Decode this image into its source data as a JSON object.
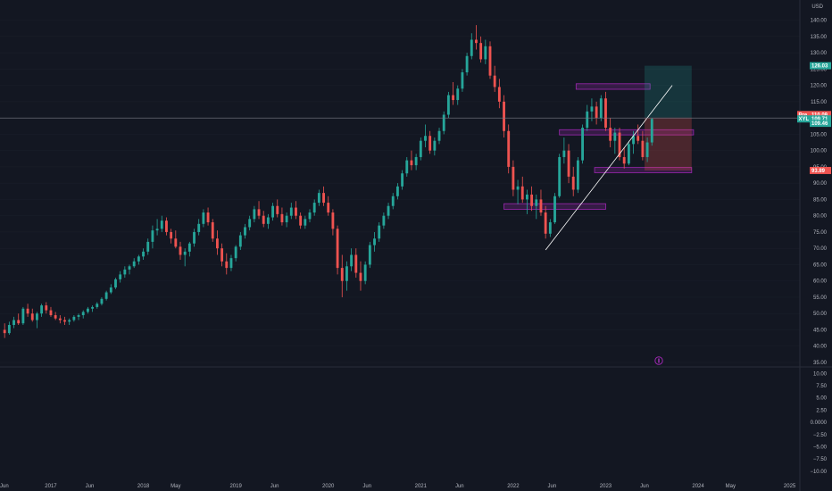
{
  "colors": {
    "background": "#131722",
    "up": "#26a69a",
    "down": "#ef5350",
    "zone_fill": "rgba(156,39,176,0.25)",
    "zone_stroke": "#9c27b0",
    "trendline": "#ffffff",
    "target_fill": "rgba(38,166,154,0.22)",
    "stop_fill": "rgba(239,83,80,0.25)",
    "axis_text": "#b2b5be"
  },
  "chart_data": [
    {
      "type": "candlestick",
      "title": "",
      "currency_label": "USD",
      "x_ticks": [
        "Jun",
        "2017",
        "Jun",
        "2018",
        "May",
        "2019",
        "Jun",
        "2020",
        "Jun",
        "2021",
        "Jun",
        "2022",
        "Jun",
        "2023",
        "Jun",
        "2024",
        "May",
        "2025"
      ],
      "y_ticks": [
        "140.00",
        "135.00",
        "130.00",
        "125.00",
        "120.00",
        "115.00",
        "105.00",
        "100.00",
        "95.00",
        "90.00",
        "85.00",
        "80.00",
        "75.00",
        "70.00",
        "65.00",
        "60.00",
        "55.00",
        "50.00",
        "45.00",
        "40.00",
        "35.00"
      ],
      "ylim": [
        35,
        144
      ],
      "price_badges": [
        {
          "label": "126.03",
          "value": 126.03,
          "color": "#26a69a"
        },
        {
          "label": "110.09",
          "value": 110.09,
          "color": "#ef5350",
          "prefix": "Pre"
        },
        {
          "label": "109.71",
          "value": 109.71,
          "color": "#26a69a",
          "prefix": "XYL"
        },
        {
          "label": "109.46",
          "value": 109.46,
          "color": "#26a69a"
        },
        {
          "label": "93.89",
          "value": 93.89,
          "color": "#ef5350"
        }
      ],
      "horizontal_line": 110,
      "support_resistance_zones": [
        {
          "start": 2022.68,
          "end": 2023.48,
          "low": 118.8,
          "high": 120.5
        },
        {
          "start": 2022.5,
          "end": 2023.95,
          "low": 104.8,
          "high": 106.4
        },
        {
          "start": 2022.88,
          "end": 2023.93,
          "low": 93.2,
          "high": 94.8
        },
        {
          "start": 2021.9,
          "end": 2023.0,
          "low": 82.0,
          "high": 83.7
        }
      ],
      "trendline": {
        "x": [
          2022.35,
          2023.72
        ],
        "y": [
          69.5,
          120.0
        ]
      },
      "long_position": {
        "start": 2023.42,
        "end": 2023.93,
        "entry": 110.09,
        "target": 126.03,
        "stop": 93.89
      },
      "candles": [
        [
          2016.5,
          45,
          47,
          42.5,
          44
        ],
        [
          2016.55,
          44,
          47.5,
          43.5,
          46.5
        ],
        [
          2016.6,
          46.5,
          49,
          45.5,
          48
        ],
        [
          2016.65,
          48,
          50,
          46.5,
          47
        ],
        [
          2016.7,
          47,
          52,
          46.5,
          51.5
        ],
        [
          2016.75,
          51.5,
          53,
          49,
          50
        ],
        [
          2016.8,
          50,
          51.5,
          47.5,
          48
        ],
        [
          2016.85,
          48,
          50.5,
          45.5,
          50
        ],
        [
          2016.9,
          50,
          53,
          49,
          52.5
        ],
        [
          2016.95,
          52.5,
          53.5,
          50,
          51
        ],
        [
          2017.0,
          51,
          52,
          49,
          49.5
        ],
        [
          2017.05,
          49.5,
          50.5,
          48,
          48.5
        ],
        [
          2017.1,
          48.5,
          49.5,
          47,
          48
        ],
        [
          2017.15,
          48,
          49,
          46.5,
          47.5
        ],
        [
          2017.2,
          47.5,
          48.5,
          46.5,
          48
        ],
        [
          2017.25,
          48,
          49.5,
          47.5,
          49
        ],
        [
          2017.3,
          49,
          50,
          48,
          49.5
        ],
        [
          2017.35,
          49.5,
          51,
          48.5,
          50.5
        ],
        [
          2017.4,
          50.5,
          52,
          50,
          51.5
        ],
        [
          2017.45,
          51.5,
          52.5,
          50.5,
          52
        ],
        [
          2017.5,
          52,
          53.5,
          51.5,
          53
        ],
        [
          2017.55,
          53,
          55,
          52.5,
          54.5
        ],
        [
          2017.6,
          54.5,
          57,
          54,
          56.5
        ],
        [
          2017.65,
          56.5,
          59,
          56,
          58
        ],
        [
          2017.7,
          58,
          61,
          57.5,
          60.5
        ],
        [
          2017.75,
          60.5,
          63,
          59.5,
          62
        ],
        [
          2017.8,
          62,
          64.5,
          61,
          63.5
        ],
        [
          2017.85,
          63.5,
          65,
          62,
          64.5
        ],
        [
          2017.9,
          64.5,
          67,
          64,
          66
        ],
        [
          2017.95,
          66,
          68,
          65,
          67.5
        ],
        [
          2018.0,
          67.5,
          70,
          66.5,
          69
        ],
        [
          2018.05,
          69,
          73,
          68,
          72
        ],
        [
          2018.1,
          72,
          77,
          70,
          75.5
        ],
        [
          2018.15,
          75.5,
          79,
          74,
          76
        ],
        [
          2018.2,
          76,
          80,
          75,
          78.5
        ],
        [
          2018.25,
          78.5,
          79.5,
          74,
          75
        ],
        [
          2018.3,
          75,
          76,
          71.5,
          73
        ],
        [
          2018.35,
          73,
          75.5,
          70,
          70.5
        ],
        [
          2018.4,
          70.5,
          72,
          66.5,
          68
        ],
        [
          2018.45,
          68,
          70,
          64.5,
          69
        ],
        [
          2018.5,
          69,
          72,
          67.5,
          71.5
        ],
        [
          2018.55,
          71.5,
          76,
          70.5,
          75
        ],
        [
          2018.6,
          75,
          79,
          74,
          77.5
        ],
        [
          2018.65,
          77.5,
          82,
          76.5,
          81
        ],
        [
          2018.7,
          81,
          82.5,
          77,
          78
        ],
        [
          2018.75,
          78,
          79,
          72,
          73
        ],
        [
          2018.8,
          73,
          75.5,
          68,
          70
        ],
        [
          2018.85,
          70,
          71.5,
          64.5,
          66
        ],
        [
          2018.9,
          66,
          68.5,
          62,
          64
        ],
        [
          2018.95,
          64,
          68,
          63,
          67
        ],
        [
          2019.0,
          67,
          71,
          66,
          70.5
        ],
        [
          2019.05,
          70.5,
          75,
          69.5,
          74
        ],
        [
          2019.1,
          74,
          77.5,
          73,
          76.5
        ],
        [
          2019.15,
          76.5,
          80,
          75.5,
          79
        ],
        [
          2019.2,
          79,
          83,
          78,
          82
        ],
        [
          2019.25,
          82,
          84.5,
          79,
          80
        ],
        [
          2019.3,
          80,
          81.5,
          76.5,
          77.5
        ],
        [
          2019.35,
          77.5,
          80.5,
          76,
          79.5
        ],
        [
          2019.4,
          79.5,
          84,
          78.5,
          83
        ],
        [
          2019.45,
          83,
          85,
          79.5,
          80.5
        ],
        [
          2019.5,
          80.5,
          82.5,
          77,
          78
        ],
        [
          2019.55,
          78,
          81,
          76.5,
          80
        ],
        [
          2019.6,
          80,
          84,
          79,
          82.5
        ],
        [
          2019.65,
          82.5,
          84.5,
          79,
          80
        ],
        [
          2019.7,
          80,
          81,
          76,
          77
        ],
        [
          2019.75,
          77,
          80,
          76,
          79
        ],
        [
          2019.8,
          79,
          82,
          78,
          81
        ],
        [
          2019.85,
          81,
          85,
          80,
          84
        ],
        [
          2019.9,
          84,
          88,
          83,
          87
        ],
        [
          2019.95,
          87,
          89,
          83,
          84
        ],
        [
          2020.0,
          84,
          86,
          80,
          81
        ],
        [
          2020.05,
          81,
          82,
          74,
          76
        ],
        [
          2020.1,
          76,
          77,
          62,
          64
        ],
        [
          2020.15,
          64,
          68,
          55,
          60
        ],
        [
          2020.2,
          60,
          66,
          57,
          64.5
        ],
        [
          2020.25,
          64.5,
          70,
          63,
          68
        ],
        [
          2020.3,
          68,
          70,
          61,
          62.5
        ],
        [
          2020.35,
          62.5,
          66,
          57,
          60
        ],
        [
          2020.4,
          60,
          66,
          59,
          65
        ],
        [
          2020.45,
          65,
          72,
          64,
          71
        ],
        [
          2020.5,
          71,
          75,
          69,
          73
        ],
        [
          2020.55,
          73,
          78,
          72,
          77
        ],
        [
          2020.6,
          77,
          81,
          76,
          80
        ],
        [
          2020.65,
          80,
          84,
          79,
          83
        ],
        [
          2020.7,
          83,
          87,
          82,
          86
        ],
        [
          2020.75,
          86,
          90,
          85,
          89
        ],
        [
          2020.8,
          89,
          94,
          88,
          93
        ],
        [
          2020.85,
          93,
          98,
          92,
          97
        ],
        [
          2020.9,
          97,
          100,
          94,
          95.5
        ],
        [
          2020.95,
          95.5,
          99,
          94,
          98
        ],
        [
          2021.0,
          98,
          104,
          97,
          103
        ],
        [
          2021.05,
          103,
          108,
          101,
          104.5
        ],
        [
          2021.1,
          104.5,
          106,
          99,
          100
        ],
        [
          2021.15,
          100,
          104,
          98.5,
          103
        ],
        [
          2021.2,
          103,
          107,
          102,
          106
        ],
        [
          2021.25,
          106,
          112,
          105,
          111
        ],
        [
          2021.3,
          111,
          118,
          110,
          117
        ],
        [
          2021.35,
          117,
          121,
          114,
          115.5
        ],
        [
          2021.4,
          115.5,
          120,
          114,
          119
        ],
        [
          2021.45,
          119,
          125,
          118,
          124
        ],
        [
          2021.5,
          124,
          130,
          123,
          129
        ],
        [
          2021.55,
          129,
          136,
          128,
          134
        ],
        [
          2021.6,
          134,
          138.5,
          131,
          133
        ],
        [
          2021.65,
          133,
          135,
          127,
          128
        ],
        [
          2021.7,
          128,
          134,
          126.5,
          132
        ],
        [
          2021.75,
          132,
          133.5,
          122,
          123
        ],
        [
          2021.8,
          123,
          126,
          118,
          119.5
        ],
        [
          2021.85,
          119.5,
          122,
          113,
          115
        ],
        [
          2021.9,
          115,
          117,
          104,
          106
        ],
        [
          2021.95,
          106,
          108,
          93,
          95
        ],
        [
          2022.0,
          95,
          97,
          86,
          88
        ],
        [
          2022.05,
          88,
          91,
          83.5,
          89
        ],
        [
          2022.1,
          89,
          92,
          84,
          85
        ],
        [
          2022.15,
          85,
          88,
          80.5,
          86.5
        ],
        [
          2022.2,
          86.5,
          89,
          81.5,
          83
        ],
        [
          2022.25,
          83,
          86.5,
          79,
          85
        ],
        [
          2022.3,
          85,
          88,
          80,
          81
        ],
        [
          2022.35,
          81,
          83,
          73,
          74.5
        ],
        [
          2022.4,
          74.5,
          79,
          73.5,
          78
        ],
        [
          2022.45,
          78,
          87,
          77.5,
          86
        ],
        [
          2022.5,
          86,
          99,
          85.5,
          98
        ],
        [
          2022.55,
          98,
          104,
          96,
          100
        ],
        [
          2022.6,
          100,
          102,
          90,
          92
        ],
        [
          2022.65,
          92,
          95,
          86,
          88
        ],
        [
          2022.7,
          88,
          98,
          87,
          97
        ],
        [
          2022.75,
          97,
          108,
          96,
          107
        ],
        [
          2022.8,
          107,
          114,
          106,
          112
        ],
        [
          2022.85,
          112,
          116,
          109,
          113.5
        ],
        [
          2022.9,
          113.5,
          115,
          108,
          110
        ],
        [
          2022.95,
          110,
          117,
          109,
          116
        ],
        [
          2023.0,
          116,
          118,
          106,
          107
        ],
        [
          2023.05,
          107,
          110,
          101,
          103
        ],
        [
          2023.1,
          103,
          107,
          99,
          105.5
        ],
        [
          2023.15,
          105.5,
          107,
          97,
          98
        ],
        [
          2023.2,
          98,
          101,
          94.5,
          96
        ],
        [
          2023.25,
          96,
          103,
          95.5,
          102
        ],
        [
          2023.3,
          102,
          106,
          99,
          104.5
        ],
        [
          2023.35,
          104.5,
          108,
          102,
          103
        ],
        [
          2023.4,
          103,
          106,
          97,
          98
        ],
        [
          2023.45,
          98,
          104,
          96.5,
          102.5
        ],
        [
          2023.5,
          102.5,
          110,
          101.5,
          109.71
        ]
      ]
    },
    {
      "type": "line",
      "title": "",
      "y_ticks": [
        "10.00",
        "7.50",
        "5.00",
        "2.50",
        "0.0000",
        "−2.50",
        "−5.00",
        "−7.50",
        "−10.00"
      ],
      "ylim": [
        -11.5,
        10.8
      ],
      "values": []
    }
  ]
}
